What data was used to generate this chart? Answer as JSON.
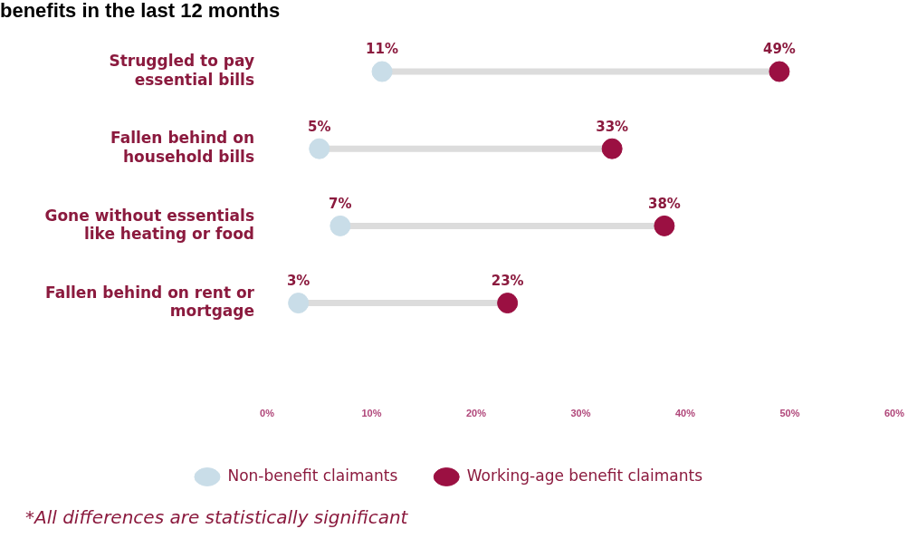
{
  "chart_data": {
    "type": "scatter",
    "title": "benefits in the last 12 months",
    "orientation": "horizontal",
    "categories": [
      "Struggled to pay essential bills",
      "Fallen behind on household bills",
      "Gone without essentials like heating or food",
      "Fallen behind on rent or mortgage"
    ],
    "series": [
      {
        "name": "Non-benefit claimants",
        "color": "#c9dde8",
        "values": [
          11,
          5,
          7,
          3
        ],
        "value_labels": [
          "11%",
          "5%",
          "7%",
          "3%"
        ]
      },
      {
        "name": "Working-age benefit claimants",
        "color": "#9b1042",
        "values": [
          49,
          33,
          38,
          23
        ],
        "value_labels": [
          "49%",
          "33%",
          "38%",
          "23%"
        ]
      }
    ],
    "xlim": [
      0,
      60
    ],
    "xticks": [
      {
        "value": 0,
        "label": "0%"
      },
      {
        "value": 10,
        "label": "10%"
      },
      {
        "value": 20,
        "label": "20%"
      },
      {
        "value": 30,
        "label": "30%"
      },
      {
        "value": 40,
        "label": "40%"
      },
      {
        "value": 50,
        "label": "50%"
      },
      {
        "value": 60,
        "label": "60%"
      }
    ],
    "grid": false,
    "legend": "bottom",
    "marker": "circle",
    "annotations": [
      "*All differences are statistically significant"
    ]
  }
}
